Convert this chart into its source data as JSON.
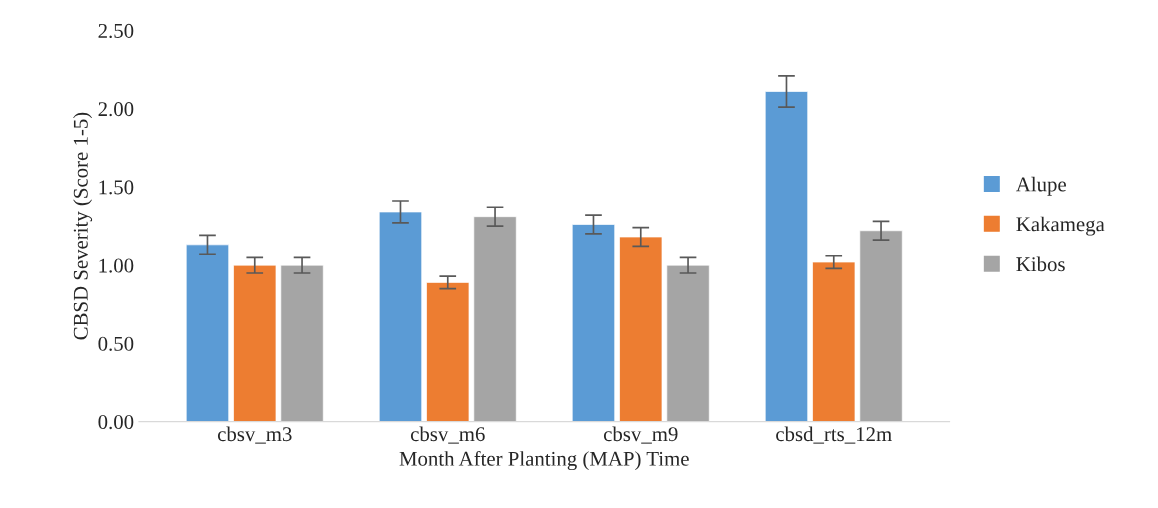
{
  "chart_data": {
    "type": "bar",
    "xlabel": "Month After Planting (MAP) Time",
    "ylabel": "CBSD Severity (Score 1-5)",
    "categories": [
      "cbsv_m3",
      "cbsv_m6",
      "cbsv_m9",
      "cbsd_rts_12m"
    ],
    "series": [
      {
        "name": "Alupe",
        "color": "#5b9bd5",
        "values": [
          1.13,
          1.34,
          1.26,
          2.11
        ],
        "errors": [
          0.06,
          0.07,
          0.06,
          0.1
        ]
      },
      {
        "name": "Kakamega",
        "color": "#ed7d31",
        "values": [
          1.0,
          0.89,
          1.18,
          1.02
        ],
        "errors": [
          0.05,
          0.04,
          0.06,
          0.04
        ]
      },
      {
        "name": "Kibos",
        "color": "#a5a5a5",
        "values": [
          1.0,
          1.31,
          1.0,
          1.22
        ],
        "errors": [
          0.05,
          0.06,
          0.05,
          0.06
        ]
      }
    ],
    "ylim": [
      0,
      2.5
    ],
    "yticks": [
      {
        "value": 0,
        "label": "0.00"
      },
      {
        "value": 0.5,
        "label": "0.50"
      },
      {
        "value": 1,
        "label": "1.00"
      },
      {
        "value": 1.5,
        "label": "1.50"
      },
      {
        "value": 2,
        "label": "2.00"
      },
      {
        "value": 2.5,
        "label": "2.50"
      }
    ],
    "grid": false,
    "legend": "right"
  }
}
